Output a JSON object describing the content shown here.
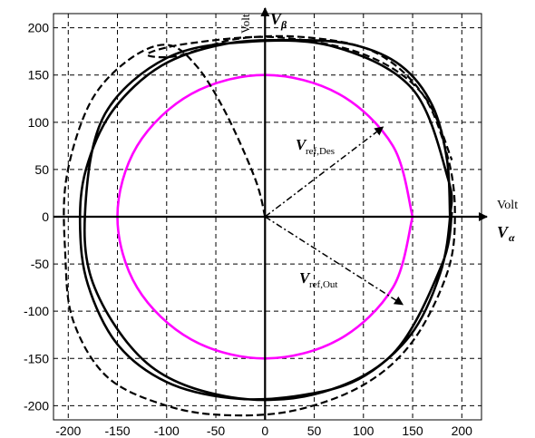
{
  "chart_data": {
    "type": "line",
    "title": "",
    "xlim": [
      -215,
      220
    ],
    "ylim": [
      -215,
      215
    ],
    "x_ticks": [
      -200,
      -150,
      -100,
      -50,
      0,
      50,
      100,
      150,
      200
    ],
    "y_ticks": [
      -200,
      -150,
      -100,
      -50,
      0,
      50,
      100,
      150,
      200
    ],
    "grid": true,
    "grid_style": "dashed",
    "axis_labels": {
      "x_unit": "Volt",
      "x_symbol": "V",
      "x_subscript": "α",
      "y_unit": "Volt",
      "y_symbol": "V",
      "y_subscript": "β"
    },
    "vector_labels": [
      {
        "main": "V",
        "sub": "ref,Des"
      },
      {
        "main": "V",
        "sub": "ref,Out"
      }
    ],
    "vectors": [
      {
        "from": [
          0,
          0
        ],
        "to": [
          120,
          95
        ],
        "style": "dash-dot"
      },
      {
        "from": [
          0,
          0
        ],
        "to": [
          140,
          -93
        ],
        "style": "dash-dot"
      }
    ],
    "series": [
      {
        "style": "solid",
        "color": "#ff00ff",
        "x": [
          150,
          130,
          75,
          0,
          -75,
          -130,
          -150,
          -130,
          -75,
          0,
          75,
          130,
          150
        ],
        "y": [
          0,
          75,
          130,
          150,
          130,
          75,
          0,
          -75,
          -130,
          -150,
          -130,
          -75,
          0
        ]
      },
      {
        "style": "solid",
        "color": "#000000",
        "x": [
          188,
          185,
          170,
          138,
          90,
          30,
          -40,
          -105,
          -155,
          -182,
          -188,
          -180,
          -150,
          -100,
          -35,
          30,
          95,
          148,
          178,
          188,
          186,
          150,
          70,
          -20,
          -100,
          -162,
          -182,
          -175,
          -120,
          -40,
          50,
          130,
          180,
          190
        ],
        "y": [
          0,
          60,
          118,
          160,
          182,
          187,
          183,
          160,
          112,
          50,
          -10,
          -72,
          -135,
          -175,
          -192,
          -190,
          -172,
          -125,
          -60,
          0,
          40,
          135,
          180,
          185,
          168,
          110,
          20,
          -70,
          -155,
          -190,
          -188,
          -145,
          -50,
          5
        ]
      },
      {
        "style": "dashed",
        "color": "#000000",
        "x": [
          0,
          -10,
          -40,
          -70,
          -100,
          -140,
          -178,
          -202,
          -203,
          -195,
          -160,
          -100,
          -40,
          30,
          100,
          150,
          185,
          193,
          186,
          160,
          110,
          40,
          -30,
          -90,
          -120,
          -80,
          10,
          100,
          160,
          190
        ],
        "y": [
          0,
          40,
          110,
          160,
          182,
          165,
          120,
          40,
          -40,
          -110,
          -170,
          -200,
          -210,
          -205,
          -178,
          -132,
          -60,
          0,
          62,
          130,
          175,
          190,
          188,
          170,
          172,
          183,
          190,
          172,
          130,
          60
        ]
      }
    ]
  }
}
